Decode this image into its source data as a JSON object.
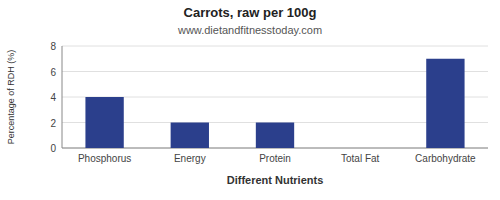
{
  "chart_data": {
    "type": "bar",
    "title": "Carrots, raw per 100g",
    "subtitle": "www.dietandfitnesstoday.com",
    "xlabel": "Different Nutrients",
    "ylabel": "Percentage of RDH (%)",
    "categories": [
      "Phosphorus",
      "Energy",
      "Protein",
      "Total Fat",
      "Carbohydrate"
    ],
    "values": [
      4.0,
      2.0,
      2.0,
      0.0,
      7.0
    ],
    "color": "#2b3f8c",
    "ylim": [
      0,
      8
    ],
    "yticks": [
      0,
      2,
      4,
      6,
      8
    ],
    "grid": true
  }
}
